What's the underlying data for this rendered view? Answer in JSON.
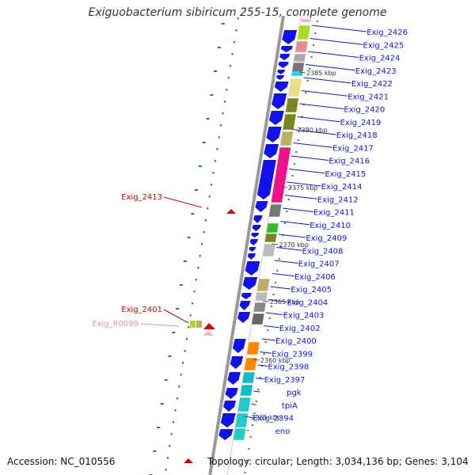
{
  "title": "Exiguobacterium sibiricum 255-15, complete genome",
  "footer": {
    "accession": "Accession: NC_010556",
    "topology": "Topology: circular; Length: 3,034,136 bp; Genes: 3,104"
  },
  "ruler": [
    "2385 kbp",
    "2380 kbp",
    "2375 kbp",
    "2370 kbp",
    "2365 kbp",
    "2360 kbp",
    "2355 kbp"
  ],
  "genes": [
    "Exig_2426",
    "Exig_2425",
    "Exig_2424",
    "Exig_2423",
    "Exig_2422",
    "Exig_2421",
    "Exig_2420",
    "Exig_2419",
    "Exig_2418",
    "Exig_2417",
    "Exig_2416",
    "Exig_2415",
    "Exig_2414",
    "Exig_2412",
    "Exig_2411",
    "Exig_2410",
    "Exig_2409",
    "Exig_2408",
    "Exig_2407",
    "Exig_2406",
    "Exig_2405",
    "Exig_2404",
    "Exig_2403",
    "Exig_2402",
    "Exig_2400",
    "Exig_2399",
    "Exig_2398",
    "Exig_2397",
    "pgk",
    "tpiA",
    "Exig_2394",
    "eno"
  ],
  "left_genes": [
    {
      "name": "Exig_2413",
      "color": "#cc0000"
    },
    {
      "name": "Exig_2401",
      "color": "#cc0000"
    },
    {
      "name": "Exig_R0099",
      "color": "#ee88bb"
    }
  ],
  "colors": {
    "cds_fwd": "#1111ee",
    "cds_rev": "#dd0000",
    "rna": "#ffaacc",
    "backbone": "#999999",
    "gc_dots": "#228822"
  }
}
